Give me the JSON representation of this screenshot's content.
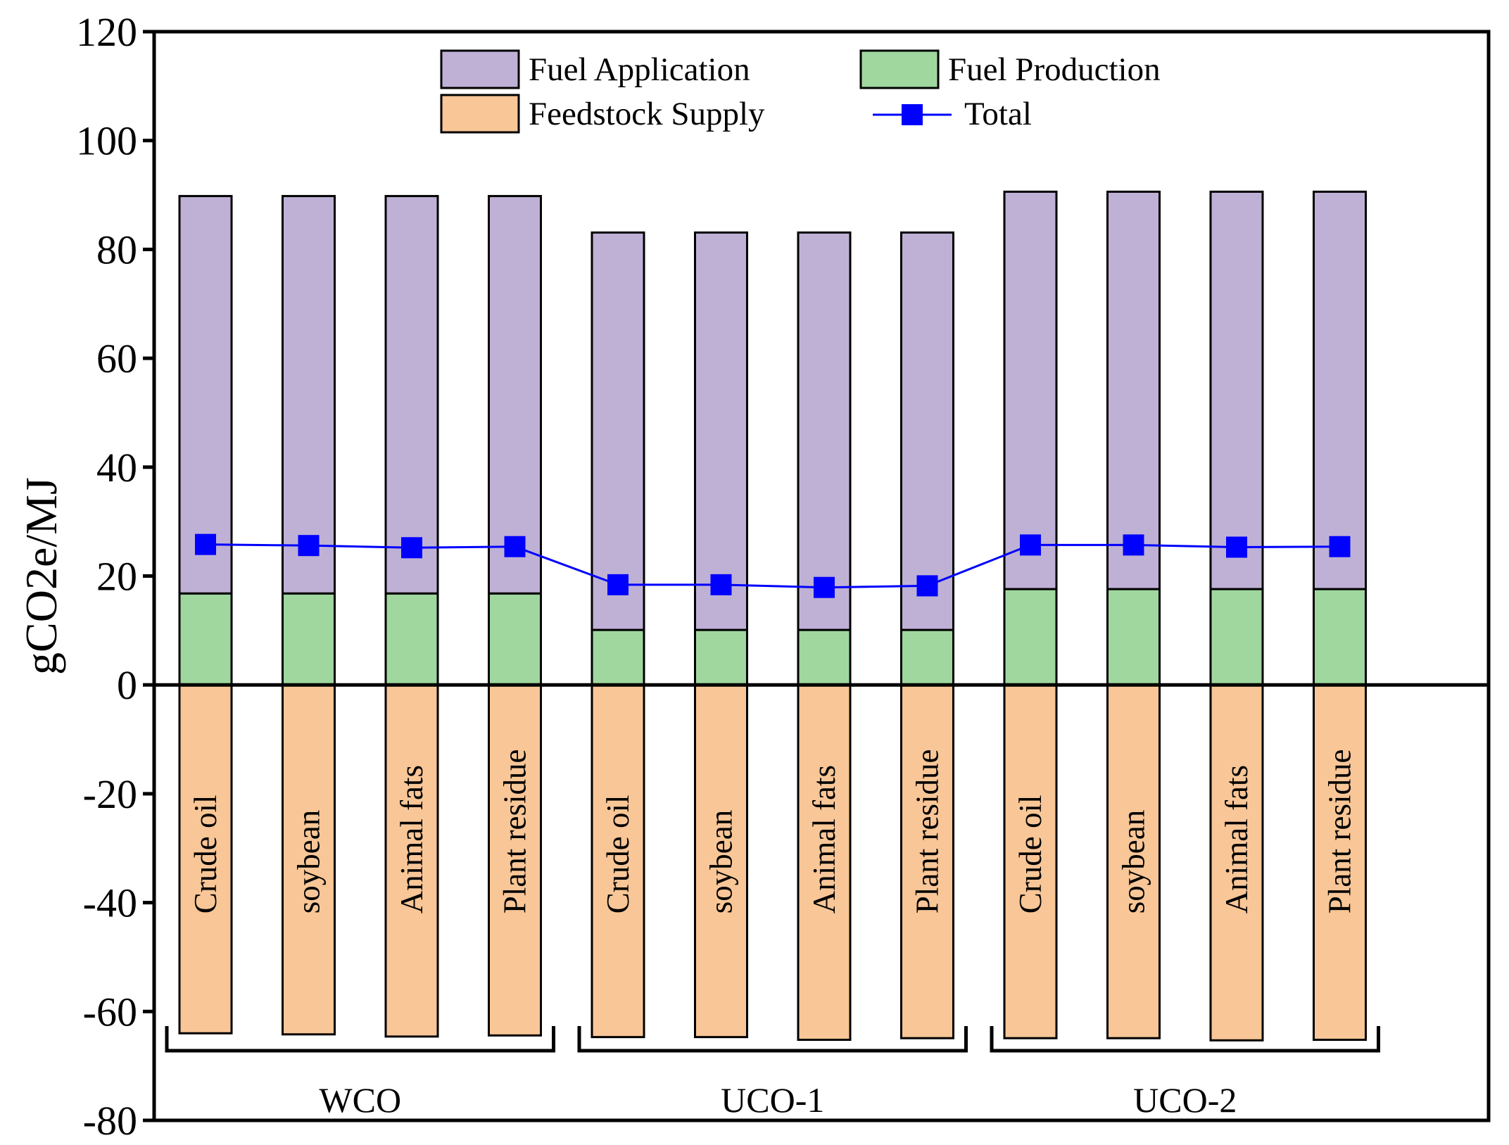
{
  "chart_data": {
    "type": "bar",
    "subtype": "stacked-with-line",
    "title": "",
    "xlabel": "",
    "ylabel": "gCO2e/MJ",
    "ylim": [
      -80,
      120
    ],
    "yticks": [
      -80,
      -60,
      -40,
      -20,
      0,
      20,
      40,
      60,
      80,
      100,
      120
    ],
    "categories": [
      "Crude oil",
      "soybean",
      "Animal fats",
      "Plant residue",
      "Crude oil",
      "soybean",
      "Animal fats",
      "Plant residue",
      "Crude oil",
      "soybean",
      "Animal fats",
      "Plant residue"
    ],
    "groups": [
      {
        "name": "WCO",
        "start": 0,
        "end": 3
      },
      {
        "name": "UCO-1",
        "start": 4,
        "end": 7
      },
      {
        "name": "UCO-2",
        "start": 8,
        "end": 11
      }
    ],
    "series": [
      {
        "name": "Fuel Application",
        "type": "bar",
        "color": "#bfb1d6",
        "values": [
          73.0,
          73.0,
          73.0,
          73.0,
          73.0,
          73.0,
          73.0,
          73.0,
          73.0,
          73.0,
          73.0,
          73.0
        ]
      },
      {
        "name": "Fuel Production",
        "type": "bar",
        "color": "#a0d79f",
        "values": [
          16.8,
          16.8,
          16.8,
          16.8,
          10.1,
          10.1,
          10.1,
          10.1,
          17.6,
          17.6,
          17.6,
          17.6
        ]
      },
      {
        "name": "Feedstock Supply",
        "type": "bar",
        "color": "#f8c697",
        "values": [
          -64.0,
          -64.2,
          -64.6,
          -64.4,
          -64.7,
          -64.7,
          -65.2,
          -64.9,
          -64.9,
          -64.9,
          -65.3,
          -65.2
        ]
      },
      {
        "name": "Total",
        "type": "line",
        "color": "#0000ff",
        "values": [
          25.8,
          25.6,
          25.2,
          25.4,
          18.4,
          18.4,
          17.9,
          18.2,
          25.7,
          25.7,
          25.3,
          25.4
        ]
      }
    ],
    "legend": {
      "position": "top-center",
      "entries": [
        "Fuel Application",
        "Fuel Production",
        "Feedstock Supply",
        "Total"
      ]
    },
    "grid": false
  }
}
